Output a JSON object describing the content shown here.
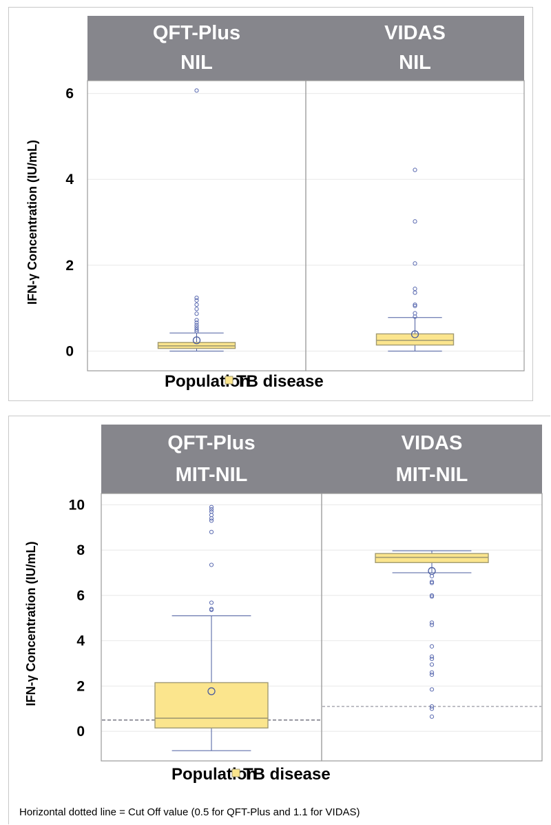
{
  "chart_data": [
    {
      "type": "box",
      "ylabel": "IFN-γ  Concentration (IU/mL)",
      "ylim": [
        -0.3,
        6.3
      ],
      "yticks": [
        0,
        2,
        4,
        6
      ],
      "grid": true,
      "legend": {
        "title": "Population",
        "entries": [
          "TB disease"
        ],
        "placement": "bottom"
      },
      "colors": {
        "strip": "#86868c",
        "box_fill": "#fbe58d",
        "box_stroke": "#a19a72",
        "whisker": "#4a5c9f",
        "outlier": "#5a6ab0",
        "gridline": "#e8e8e8"
      },
      "panels": [
        {
          "header": [
            "QFT-Plus",
            "NIL"
          ],
          "box": {
            "q1": 0.06,
            "median": 0.12,
            "q3": 0.2,
            "whisker_low": 0.0,
            "whisker_high": 0.42,
            "mean": 0.25
          },
          "outliers": [
            0.46,
            0.5,
            0.55,
            0.6,
            0.66,
            0.72,
            0.87,
            0.98,
            1.08,
            1.18,
            1.24,
            6.07
          ]
        },
        {
          "header": [
            "VIDAS",
            "NIL"
          ],
          "box": {
            "q1": 0.14,
            "median": 0.25,
            "q3": 0.4,
            "whisker_low": 0.0,
            "whisker_high": 0.78,
            "mean": 0.39
          },
          "outliers": [
            0.8,
            0.88,
            1.05,
            1.08,
            1.36,
            1.45,
            2.04,
            3.02,
            4.22
          ]
        }
      ]
    },
    {
      "type": "box",
      "ylabel": "IFN-γ  Concentration (IU/mL)",
      "ylim": [
        -1.0,
        10.5
      ],
      "yticks": [
        0,
        2,
        4,
        6,
        8,
        10
      ],
      "grid": true,
      "legend": {
        "title": "Population",
        "entries": [
          "TB disease"
        ],
        "placement": "bottom"
      },
      "colors": {
        "strip": "#86868c",
        "box_fill": "#fbe58d",
        "box_stroke": "#a19a72",
        "whisker": "#4a5c9f",
        "outlier": "#5a6ab0",
        "gridline": "#e8e8e8",
        "cutoff": "#7d7d88"
      },
      "panels": [
        {
          "header": [
            "QFT-Plus",
            "MIT-NIL"
          ],
          "box": {
            "q1": 0.15,
            "median": 0.58,
            "q3": 2.15,
            "whisker_low": -0.85,
            "whisker_high": 5.1,
            "mean": 1.77
          },
          "outliers": [
            5.36,
            5.4,
            5.68,
            7.35,
            8.8,
            9.3,
            9.4,
            9.55,
            9.7,
            9.8,
            9.9
          ],
          "cutoff": 0.5
        },
        {
          "header": [
            "VIDAS",
            "MIT-NIL"
          ],
          "box": {
            "q1": 7.45,
            "median": 7.68,
            "q3": 7.85,
            "whisker_low": 7.0,
            "whisker_high": 7.97,
            "mean": 7.08
          },
          "outliers": [
            6.85,
            6.6,
            6.55,
            6.0,
            5.95,
            4.8,
            4.7,
            3.75,
            3.3,
            3.2,
            2.95,
            2.6,
            2.5,
            1.85,
            1.1,
            1.0,
            0.65
          ],
          "cutoff": 1.1
        }
      ]
    }
  ],
  "footnote": "Horizontal dotted line = Cut Off value (0.5 for QFT-Plus and 1.1 for VIDAS)"
}
